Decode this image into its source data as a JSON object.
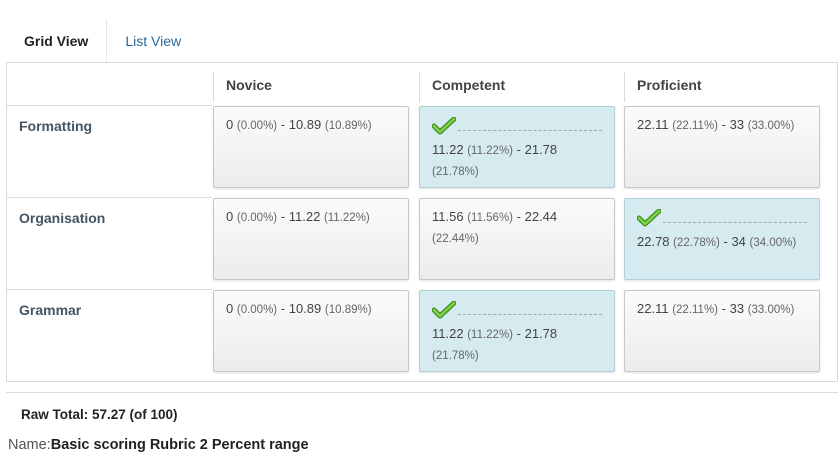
{
  "tabs": [
    {
      "label": "Grid View",
      "active": true
    },
    {
      "label": "List View",
      "active": false
    }
  ],
  "levels": [
    "Novice",
    "Competent",
    "Proficient"
  ],
  "criteria": [
    {
      "name": "Formatting",
      "cells": [
        {
          "range_start": "0",
          "pct_start": "(0.00%)",
          "sep": "-",
          "range_end": "10.89",
          "pct_end": "(10.89%)",
          "selected": false
        },
        {
          "range_start": "11.22",
          "pct_start": "(11.22%)",
          "sep": "-",
          "range_end": "21.78",
          "pct_end": "(21.78%)",
          "selected": true
        },
        {
          "range_start": "22.11",
          "pct_start": "(22.11%)",
          "sep": "-",
          "range_end": "33",
          "pct_end": "(33.00%)",
          "selected": false
        }
      ]
    },
    {
      "name": "Organisation",
      "cells": [
        {
          "range_start": "0",
          "pct_start": "(0.00%)",
          "sep": "-",
          "range_end": "11.22",
          "pct_end": "(11.22%)",
          "selected": false
        },
        {
          "range_start": "11.56",
          "pct_start": "(11.56%)",
          "sep": "-",
          "range_end": "22.44",
          "pct_end": "(22.44%)",
          "selected": false
        },
        {
          "range_start": "22.78",
          "pct_start": "(22.78%)",
          "sep": "-",
          "range_end": "34",
          "pct_end": "(34.00%)",
          "selected": true
        }
      ]
    },
    {
      "name": "Grammar",
      "cells": [
        {
          "range_start": "0",
          "pct_start": "(0.00%)",
          "sep": "-",
          "range_end": "10.89",
          "pct_end": "(10.89%)",
          "selected": false
        },
        {
          "range_start": "11.22",
          "pct_start": "(11.22%)",
          "sep": "-",
          "range_end": "21.78",
          "pct_end": "(21.78%)",
          "selected": true
        },
        {
          "range_start": "22.11",
          "pct_start": "(22.11%)",
          "sep": "-",
          "range_end": "33",
          "pct_end": "(33.00%)",
          "selected": false
        }
      ]
    }
  ],
  "footer": {
    "raw_total": "Raw Total: 57.27 (of 100)",
    "name_label": "Name:",
    "name_value": "Basic scoring Rubric 2 Percent range"
  },
  "icons": {
    "selected_marker": "check-icon"
  },
  "colors": {
    "selected_bg": "#d6ebf0",
    "check_green": "#5cb82e",
    "link": "#2a6a9a"
  }
}
